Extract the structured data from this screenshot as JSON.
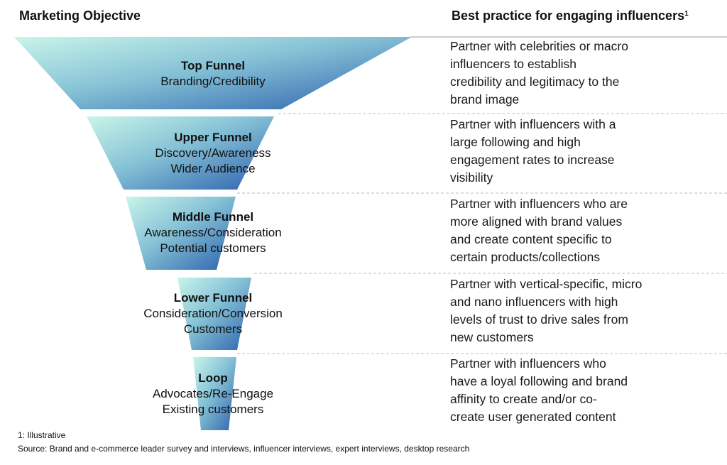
{
  "headers": {
    "objective": "Marketing Objective",
    "practice": "Best practice for engaging influencers",
    "practice_footnote_mark": "1"
  },
  "colors": {
    "gradient_light": "#c9f5ea",
    "gradient_dark": "#2a5fad",
    "divider": "#bdbdbd"
  },
  "stages": [
    {
      "title": "Top Funnel",
      "lines": [
        "Branding/Credibility"
      ],
      "practice": [
        "Partner with celebrities or macro",
        "influencers to establish",
        "credibility and legitimacy to the",
        "brand image"
      ]
    },
    {
      "title": "Upper Funnel",
      "lines": [
        "Discovery/Awareness",
        "Wider Audience"
      ],
      "practice": [
        "Partner with influencers with a",
        "large following and high",
        "engagement rates to increase",
        "visibility"
      ]
    },
    {
      "title": "Middle Funnel",
      "lines": [
        "Awareness/Consideration",
        "Potential customers"
      ],
      "practice": [
        "Partner with influencers who are",
        "more aligned with brand values",
        "and create content specific to",
        "certain products/collections"
      ]
    },
    {
      "title": "Lower Funnel",
      "lines": [
        "Consideration/Conversion",
        "Customers"
      ],
      "practice": [
        "Partner with vertical-specific, micro",
        "and nano influencers with high",
        "levels of trust to drive sales from",
        "new customers"
      ]
    },
    {
      "title": "Loop",
      "lines": [
        "Advocates/Re-Engage",
        "Existing customers"
      ],
      "practice": [
        "Partner with influencers who",
        "have a loyal following and brand",
        "affinity to create and/or co-",
        "create user generated content"
      ]
    }
  ],
  "footer": {
    "note": "1: Illustrative",
    "source": "Source: Brand and e-commerce leader survey and interviews, influencer interviews, expert interviews, desktop research"
  }
}
